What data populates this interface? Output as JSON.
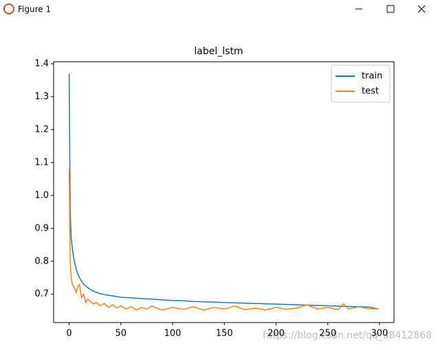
{
  "window": {
    "title": "Figure 1"
  },
  "watermark": "https://blog.csdn.net/qq_38412868",
  "chart_data": {
    "type": "line",
    "title": "label_lstm",
    "x": [
      0,
      1,
      2,
      3,
      5,
      7,
      8,
      10,
      12,
      14,
      16,
      18,
      20,
      23,
      26,
      30,
      34,
      38,
      42,
      46,
      50,
      55,
      60,
      65,
      70,
      75,
      80,
      90,
      100,
      110,
      120,
      130,
      140,
      150,
      160,
      170,
      180,
      190,
      200,
      210,
      220,
      230,
      240,
      250,
      260,
      265,
      270,
      280,
      290,
      299
    ],
    "series": [
      {
        "name": "train",
        "color": "#1f77b4",
        "values": [
          1.37,
          0.95,
          0.87,
          0.84,
          0.8,
          0.775,
          0.765,
          0.75,
          0.74,
          0.73,
          0.725,
          0.72,
          0.715,
          0.71,
          0.706,
          0.702,
          0.699,
          0.697,
          0.695,
          0.693,
          0.691,
          0.69,
          0.689,
          0.688,
          0.687,
          0.686,
          0.685,
          0.683,
          0.681,
          0.68,
          0.678,
          0.677,
          0.676,
          0.675,
          0.674,
          0.673,
          0.672,
          0.671,
          0.67,
          0.669,
          0.668,
          0.667,
          0.666,
          0.665,
          0.664,
          0.663,
          0.663,
          0.662,
          0.661,
          0.655
        ]
      },
      {
        "name": "test",
        "color": "#ff7f0e",
        "values": [
          1.08,
          0.8,
          0.75,
          0.73,
          0.72,
          0.705,
          0.72,
          0.73,
          0.69,
          0.7,
          0.675,
          0.685,
          0.68,
          0.67,
          0.675,
          0.665,
          0.672,
          0.66,
          0.668,
          0.658,
          0.665,
          0.655,
          0.662,
          0.652,
          0.66,
          0.655,
          0.664,
          0.652,
          0.66,
          0.654,
          0.662,
          0.652,
          0.66,
          0.655,
          0.664,
          0.653,
          0.658,
          0.652,
          0.66,
          0.654,
          0.658,
          0.668,
          0.655,
          0.66,
          0.653,
          0.67,
          0.655,
          0.662,
          0.656,
          0.655
        ]
      }
    ],
    "xlim": [
      -15,
      314
    ],
    "xticks": [
      0,
      50,
      100,
      150,
      200,
      250,
      300
    ],
    "ylim": [
      0.614,
      1.406
    ],
    "yticks": [
      0.7,
      0.8,
      0.9,
      {
        "value": 1.0,
        "label": "1.0"
      },
      1.1,
      1.2,
      1.3,
      1.4
    ],
    "legend": "upper right"
  }
}
